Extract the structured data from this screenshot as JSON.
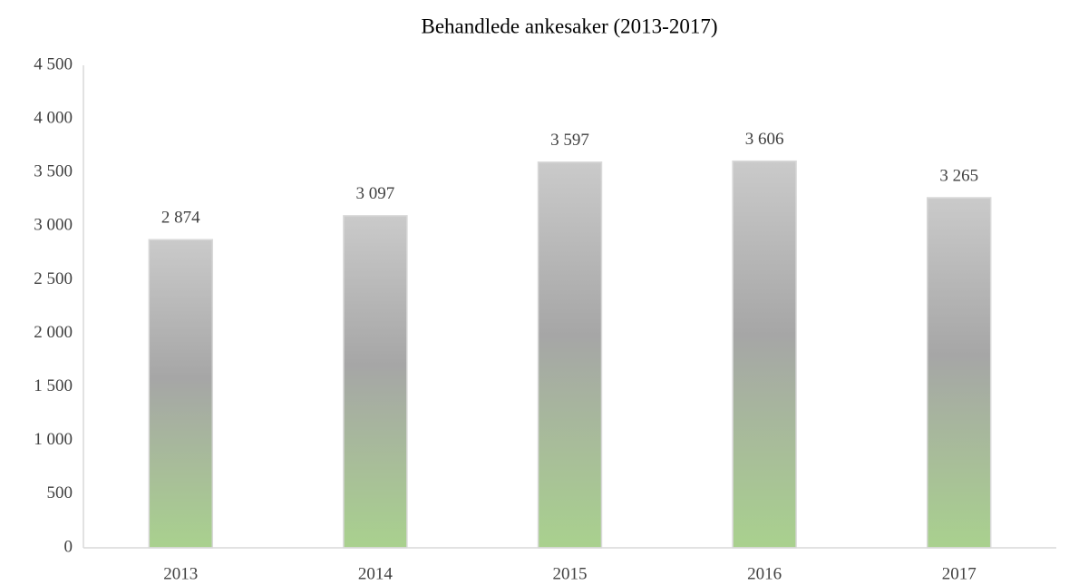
{
  "chart_data": {
    "type": "bar",
    "title": "Behandlede ankesaker (2013-2017)",
    "categories": [
      "2013",
      "2014",
      "2015",
      "2016",
      "2017"
    ],
    "values": [
      2874,
      3097,
      3597,
      3606,
      3265
    ],
    "value_labels": [
      "2 874",
      "3 097",
      "3 597",
      "3 606",
      "3 265"
    ],
    "gradient": [
      "#cacaca",
      "#a6a6a6",
      "#a9d18e"
    ],
    "ylim": [
      0,
      4500
    ],
    "yticks": [
      0,
      500,
      {
        "value": 1000,
        "label": "1 000"
      },
      {
        "value": 1500,
        "label": "1 500"
      },
      {
        "value": 2000,
        "label": "2 000"
      },
      {
        "value": 2500,
        "label": "2 500"
      },
      {
        "value": 3000,
        "label": "3 000"
      },
      {
        "value": 3500,
        "label": "3 500"
      },
      {
        "value": 4000,
        "label": "4 000"
      },
      {
        "value": 4500,
        "label": "4 500"
      }
    ],
    "grid": false
  }
}
